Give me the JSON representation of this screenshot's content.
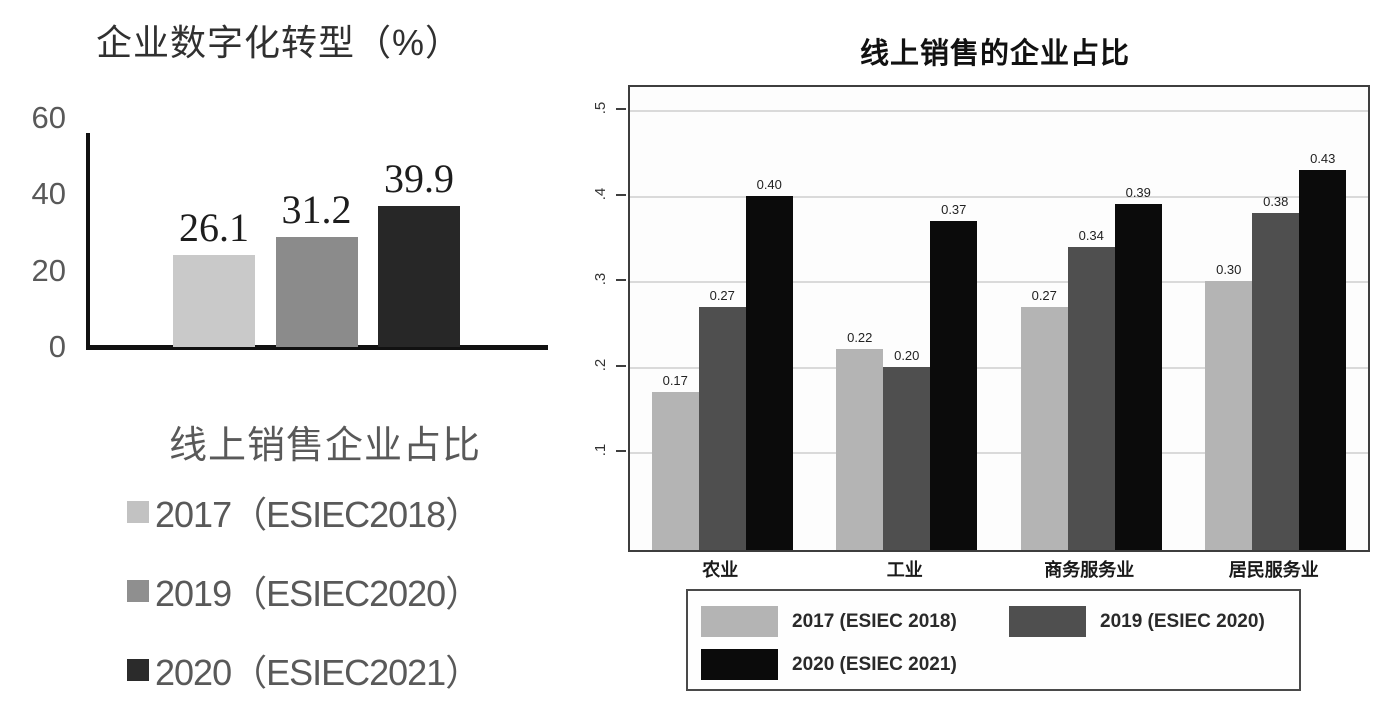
{
  "chart_data": [
    {
      "id": "digital-transformation",
      "type": "bar",
      "title": "企业数字化转型（%）",
      "categories": [
        "2017（ESIEC2018）",
        "2019（ESIEC2020）",
        "2020（ESIEC2021）"
      ],
      "values": [
        26.1,
        31.2,
        39.9
      ],
      "value_labels": [
        "26.1",
        "31.2",
        "39.9"
      ],
      "bar_colors": [
        "#c9c9c9",
        "#8b8b8b",
        "#272727"
      ],
      "xlabel": "",
      "ylabel": "",
      "ylim": [
        0,
        60
      ],
      "y_ticks": [
        0,
        20,
        40,
        60
      ],
      "y_tick_labels": [
        "0",
        "20",
        "40",
        "60"
      ],
      "grid": false,
      "legend_title": "线上销售企业占比",
      "legend_position": "below",
      "legend": [
        {
          "label": "2017（ESIEC2018）",
          "color": "#c2c2c2"
        },
        {
          "label": "2019（ESIEC2020）",
          "color": "#8f8f8f"
        },
        {
          "label": "2020（ESIEC2021）",
          "color": "#2b2b2b"
        }
      ]
    },
    {
      "id": "online-sales-share",
      "type": "bar",
      "title": "线上销售的企业占比",
      "categories": [
        "农业",
        "工业",
        "商务服务业",
        "居民服务业"
      ],
      "series": [
        {
          "name": "2017 (ESIEC 2018)",
          "color": "#b4b4b4",
          "values": [
            0.17,
            0.22,
            0.27,
            0.3
          ],
          "value_labels": [
            "0.17",
            "0.22",
            "0.27",
            "0.30"
          ]
        },
        {
          "name": "2019 (ESIEC 2020)",
          "color": "#4f4f4f",
          "values": [
            0.27,
            0.2,
            0.34,
            0.38
          ],
          "value_labels": [
            "0.27",
            "0.20",
            "0.34",
            "0.38"
          ]
        },
        {
          "name": "2020 (ESIEC 2021)",
          "color": "#0b0b0b",
          "values": [
            0.4,
            0.37,
            0.39,
            0.43
          ],
          "value_labels": [
            "0.40",
            "0.37",
            "0.39",
            "0.43"
          ]
        }
      ],
      "xlabel": "",
      "ylabel": "",
      "ylim": [
        0,
        0.53
      ],
      "y_ticks": [
        0.1,
        0.2,
        0.3,
        0.4,
        0.5
      ],
      "y_tick_labels": [
        ".1",
        ".2",
        ".3",
        ".4",
        ".5"
      ],
      "grid": true,
      "legend_position": "below-box"
    }
  ]
}
